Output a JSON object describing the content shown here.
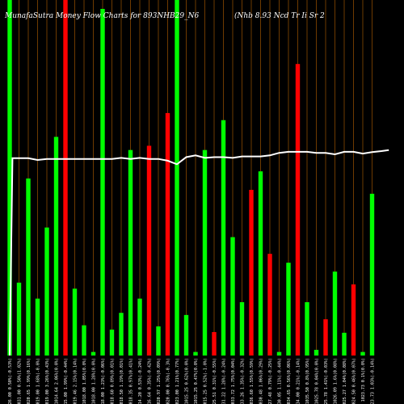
{
  "chart_data": {
    "type": "bar",
    "title_left": "MunafaSutra  Money Flow  Charts for 893NHB29_N6",
    "title_right": "(Nhb 8.93 Ncd Tr Ii   Sr 2",
    "background": "#000000",
    "colors": {
      "up": "#00ff00",
      "down": "#ff0000",
      "grid": "#8a4a00",
      "line": "#ffffff"
    },
    "ylim": [
      0,
      100
    ],
    "bars": [
      {
        "label": "1026.00 0.50%(-0.53%)",
        "value": 100,
        "color": "up"
      },
      {
        "label": "1031.00 0.50%(1.02%)",
        "value": 20.5,
        "color": "up"
      },
      {
        "label": "1020.65 1.99%(0.16%)",
        "value": 49.8,
        "color": "up"
      },
      {
        "label": "1019.00 1.68%(-0.0%)",
        "value": 16,
        "color": "up"
      },
      {
        "label": "1019.00 3.26%(0.43%)",
        "value": 36,
        "color": "up"
      },
      {
        "label": "1014.64 2.06%(0.0%)",
        "value": 61.5,
        "color": "up"
      },
      {
        "label": "1015.00 1.99%(-0.44%)",
        "value": 100,
        "color": "down"
      },
      {
        "label": "1019.46 2.15%(0.14%)",
        "value": 18.8,
        "color": "up"
      },
      {
        "label": "1018.00 1.05%(0.0%)",
        "value": 8.5,
        "color": "up"
      },
      {
        "label": "1018.00 1.28%(0.0%)",
        "value": 1,
        "color": "up"
      },
      {
        "label": "1018.00 1.23%(-0.06%)",
        "value": 97.5,
        "color": "up"
      },
      {
        "label": "1018.60 0.89%(0.01%)",
        "value": 7.3,
        "color": "up"
      },
      {
        "label": "1018.50 1.19%(0.01%)",
        "value": 12,
        "color": "up"
      },
      {
        "label": "1018.35 0.97%(0.41%)",
        "value": 57.8,
        "color": "up"
      },
      {
        "label": "1014.20 0.53%(-0.24%)",
        "value": 16,
        "color": "up"
      },
      {
        "label": "1016.64 0.35%(-0.42%)",
        "value": 59,
        "color": "down"
      },
      {
        "label": "1020.97 1.25%(0.09%)",
        "value": 8.2,
        "color": "up"
      },
      {
        "label": "1020.00 0.76%(-0.3%)",
        "value": 68.2,
        "color": "down"
      },
      {
        "label": "1023.00 1.21%(0.77%)",
        "value": 100,
        "color": "up"
      },
      {
        "label": "1015.25 0.62%(0.0%)",
        "value": 11.4,
        "color": "up"
      },
      {
        "label": "1015.25 0.47%(0.0%)",
        "value": 1,
        "color": "up"
      },
      {
        "label": "1015.25 0.52%(-1.0%)",
        "value": 57.8,
        "color": "up"
      },
      {
        "label": "1025.51 0.31%(-0.55%)",
        "value": 6.6,
        "color": "down"
      },
      {
        "label": "1031.22 1.28%(-0.24%)",
        "value": 66.2,
        "color": "up"
      },
      {
        "label": "1033.72 1.75%(0.04%)",
        "value": 33.3,
        "color": "up"
      },
      {
        "label": "1033.26 1.35%(-0.32%)",
        "value": 15,
        "color": "up"
      },
      {
        "label": "1036.60 1.55%(0.59%)",
        "value": 46.6,
        "color": "down"
      },
      {
        "label": "1030.48 1.06%(0.29%)",
        "value": 51.8,
        "color": "up"
      },
      {
        "label": "1027.48 0.79%(-0.25%)",
        "value": 28.6,
        "color": "down"
      },
      {
        "label": "1030.05 1.11%(-0.44%)",
        "value": 1,
        "color": "up"
      },
      {
        "label": "1034.65 0.56%(0.06%)",
        "value": 26.1,
        "color": "up"
      },
      {
        "label": "1034.00 0.21%(-0.14%)",
        "value": 82,
        "color": "down"
      },
      {
        "label": "1035.50 0.8%(0.95%)",
        "value": 15,
        "color": "up"
      },
      {
        "label": "1025.78 0.04%(0.0%)",
        "value": 1.6,
        "color": "up"
      },
      {
        "label": "1025.78 1.41%(-0.03%)",
        "value": 10.2,
        "color": "down"
      },
      {
        "label": "1026.09 1.6%(0.08%)",
        "value": 23.6,
        "color": "up"
      },
      {
        "label": "1025.27 1.04%(0.08%)",
        "value": 6.4,
        "color": "up"
      },
      {
        "label": "1024.50 0.46%(0.07%)",
        "value": 20,
        "color": "down"
      },
      {
        "label": "1023.73 0.1%(0.0%)",
        "value": 1,
        "color": "up"
      },
      {
        "label": "1023.73 1.03%(-0.14%)",
        "value": 45.5,
        "color": "up"
      }
    ],
    "line_points": [
      [
        0,
        0
      ],
      [
        0.3,
        55.5
      ],
      [
        1,
        55.5
      ],
      [
        2,
        55.5
      ],
      [
        3,
        55
      ],
      [
        4,
        55.3
      ],
      [
        5,
        55.3
      ],
      [
        6,
        55.3
      ],
      [
        7,
        55.3
      ],
      [
        8,
        55.3
      ],
      [
        9,
        55.3
      ],
      [
        10,
        55.3
      ],
      [
        11,
        55.3
      ],
      [
        12,
        55.6
      ],
      [
        13,
        55.3
      ],
      [
        14,
        55.6
      ],
      [
        15,
        55.3
      ],
      [
        16,
        55.3
      ],
      [
        17,
        54.8
      ],
      [
        18,
        53.8
      ],
      [
        19,
        55.8
      ],
      [
        20,
        56.3
      ],
      [
        21,
        55.6
      ],
      [
        22,
        55.8
      ],
      [
        23,
        55.8
      ],
      [
        24,
        55.6
      ],
      [
        25,
        56
      ],
      [
        26,
        56
      ],
      [
        27,
        56
      ],
      [
        28,
        56.3
      ],
      [
        29,
        57
      ],
      [
        30,
        57.3
      ],
      [
        31,
        57.3
      ],
      [
        32,
        57.3
      ],
      [
        33,
        57
      ],
      [
        34,
        57
      ],
      [
        35,
        56.6
      ],
      [
        36,
        57.3
      ],
      [
        37,
        57.3
      ],
      [
        38,
        56.8
      ],
      [
        39,
        57.2
      ],
      [
        40,
        57.5
      ],
      [
        40.8,
        57.8
      ]
    ]
  }
}
